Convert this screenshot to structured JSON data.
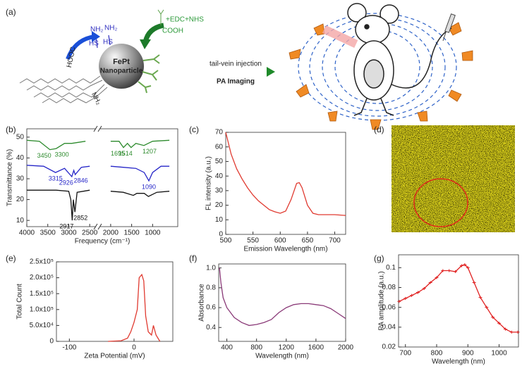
{
  "diagram": {
    "panel": "(a)",
    "amines": [
      "NH₂",
      "NH₂"
    ],
    "thiols": [
      "HS",
      "HS"
    ],
    "reagent": "+EDC+NHS",
    "acid": "COOH",
    "particle_name": "FePt",
    "particle_label": "Nanoparticle",
    "surface_acid": "HOOC",
    "surface_amine": "NH₂",
    "route": "tail-vein injection",
    "method": "PA Imaging"
  },
  "image_panel": {
    "panel": "(d)"
  },
  "chart_data": [
    {
      "type": "line",
      "panel": "(b)",
      "xlabel": "Frequency (cm⁻¹)",
      "ylabel": "Transmittance (%)",
      "xlim": [
        4000,
        400
      ],
      "xticks": [
        4000,
        3500,
        3000,
        2500,
        2000,
        1500,
        1000
      ],
      "ylim": [
        7,
        54
      ],
      "yticks": [
        10,
        20,
        30,
        40,
        50
      ],
      "series": [
        {
          "color": "#2e8b2e",
          "x": [
            4000,
            3700,
            3450,
            3300,
            3100,
            2926,
            2600,
            2300,
            2000,
            1800,
            1695,
            1600,
            1514,
            1400,
            1207,
            1000,
            600
          ],
          "values": [
            48.5,
            48,
            44,
            44.5,
            47,
            47,
            48,
            null,
            48,
            48,
            45,
            47,
            45,
            47,
            46,
            48,
            48.5
          ],
          "peak_labels": [
            3450,
            3300,
            1695,
            1514,
            1207
          ]
        },
        {
          "color": "#2626c8",
          "x": [
            4000,
            3600,
            3315,
            3100,
            2926,
            2880,
            2846,
            2700,
            2500,
            2300,
            2000,
            1700,
            1400,
            1200,
            1090,
            1000,
            800,
            600
          ],
          "values": [
            36.5,
            36,
            33,
            35,
            31,
            34,
            32,
            35.5,
            36,
            null,
            36,
            35.5,
            35,
            33,
            29,
            33,
            36,
            36
          ],
          "peak_labels": [
            3315,
            2926,
            2846,
            1090
          ]
        },
        {
          "color": "#111111",
          "x": [
            4000,
            3300,
            3000,
            2950,
            2917,
            2890,
            2852,
            2800,
            2500,
            2300,
            2000,
            1700,
            1460,
            1375,
            1200,
            1100,
            900,
            600
          ],
          "values": [
            24.5,
            24.5,
            24,
            20,
            10,
            20,
            14,
            23.5,
            24.5,
            null,
            24,
            23.5,
            22,
            23,
            23,
            21.5,
            23.5,
            24
          ],
          "peak_labels": [
            2917,
            2852
          ]
        }
      ]
    },
    {
      "type": "line",
      "panel": "(c)",
      "xlabel": "Emission Wavelength (nm)",
      "ylabel": "FL intensity (a.u.)",
      "xlim": [
        500,
        720
      ],
      "xticks": [
        500,
        550,
        600,
        650,
        700
      ],
      "ylim": [
        0,
        70
      ],
      "yticks": [
        0,
        10,
        20,
        30,
        40,
        50,
        60,
        70
      ],
      "x": [
        500,
        510,
        520,
        530,
        540,
        550,
        560,
        570,
        580,
        590,
        600,
        610,
        620,
        630,
        635,
        640,
        650,
        660,
        670,
        680,
        700,
        720
      ],
      "series": [
        {
          "color": "#e03a30",
          "values": [
            70,
            55,
            45,
            38,
            32,
            27,
            23,
            20,
            17,
            15.5,
            14.5,
            16,
            24,
            35,
            35.5,
            32,
            20,
            14.5,
            13.5,
            13.5,
            13.5,
            13
          ]
        }
      ]
    },
    {
      "type": "line",
      "panel": "(e)",
      "xlabel": "Zeta Potential (mV)",
      "ylabel": "Total Count",
      "xlim": [
        -120,
        60
      ],
      "xticks": [
        -100,
        0
      ],
      "ylim": [
        0,
        250000
      ],
      "yticks": [
        0,
        {
          "value": 50000,
          "label": "5.0x10⁴"
        },
        {
          "value": 100000,
          "label": "1.0x10⁵"
        },
        {
          "value": 150000,
          "label": "1.5x10⁵"
        },
        {
          "value": 200000,
          "label": "2.0x10⁵"
        },
        {
          "value": 250000,
          "label": "2.5x10⁵"
        }
      ],
      "x": [
        -40,
        -20,
        -10,
        -5,
        0,
        5,
        8,
        12,
        15,
        18,
        22,
        27,
        30,
        34,
        40
      ],
      "series": [
        {
          "color": "#e03a30",
          "values": [
            0,
            2000,
            10000,
            30000,
            60000,
            100000,
            200000,
            210000,
            190000,
            80000,
            30000,
            20000,
            50000,
            20000,
            0
          ]
        }
      ]
    },
    {
      "type": "line",
      "panel": "(f)",
      "xlabel": "Wavelength (nm)",
      "ylabel": "Absorbance",
      "xlim": [
        290,
        2000
      ],
      "xticks": [
        400,
        800,
        1200,
        1600,
        2000
      ],
      "ylim": [
        0.26,
        1.04
      ],
      "yticks": [
        0.4,
        0.6,
        0.8,
        {
          "value": 1,
          "label": "1.0"
        }
      ],
      "x": [
        300,
        320,
        350,
        400,
        500,
        600,
        700,
        800,
        900,
        1000,
        1100,
        1200,
        1300,
        1400,
        1500,
        1600,
        1700,
        1800,
        1900,
        2000
      ],
      "series": [
        {
          "color": "#8a3a78",
          "values": [
            1.0,
            0.85,
            0.7,
            0.6,
            0.5,
            0.45,
            0.42,
            0.43,
            0.45,
            0.48,
            0.55,
            0.6,
            0.63,
            0.64,
            0.64,
            0.63,
            0.62,
            0.59,
            0.54,
            0.49
          ]
        }
      ]
    },
    {
      "type": "errorbar",
      "panel": "(g)",
      "xlabel": "Wavelength (nm)",
      "ylabel": "PA amplitude (a.u.)",
      "xlim": [
        678,
        1062
      ],
      "xticks": [
        700,
        800,
        900,
        1000
      ],
      "ylim": [
        0.02,
        0.113
      ],
      "yticks": [
        0.02,
        0.04,
        0.06,
        0.08,
        0.1
      ],
      "x": [
        680,
        700,
        720,
        740,
        760,
        780,
        800,
        820,
        840,
        860,
        880,
        890,
        900,
        920,
        940,
        960,
        980,
        1000,
        1020,
        1040,
        1060
      ],
      "series": [
        {
          "color": "#e02020",
          "values": [
            0.066,
            0.069,
            0.072,
            0.075,
            0.079,
            0.085,
            0.09,
            0.097,
            0.097,
            0.096,
            0.102,
            0.103,
            0.1,
            0.085,
            0.07,
            0.06,
            0.05,
            0.044,
            0.038,
            0.035,
            0.035
          ],
          "errors": [
            0.0015,
            0.0015,
            0.0015,
            0.0015,
            0.0015,
            0.0015,
            0.0015,
            0.0015,
            0.0015,
            0.0015,
            0.0015,
            0.0015,
            0.0015,
            0.0015,
            0.0015,
            0.0015,
            0.0015,
            0.0015,
            0.0015,
            0.0015,
            0.0015
          ]
        }
      ]
    }
  ]
}
